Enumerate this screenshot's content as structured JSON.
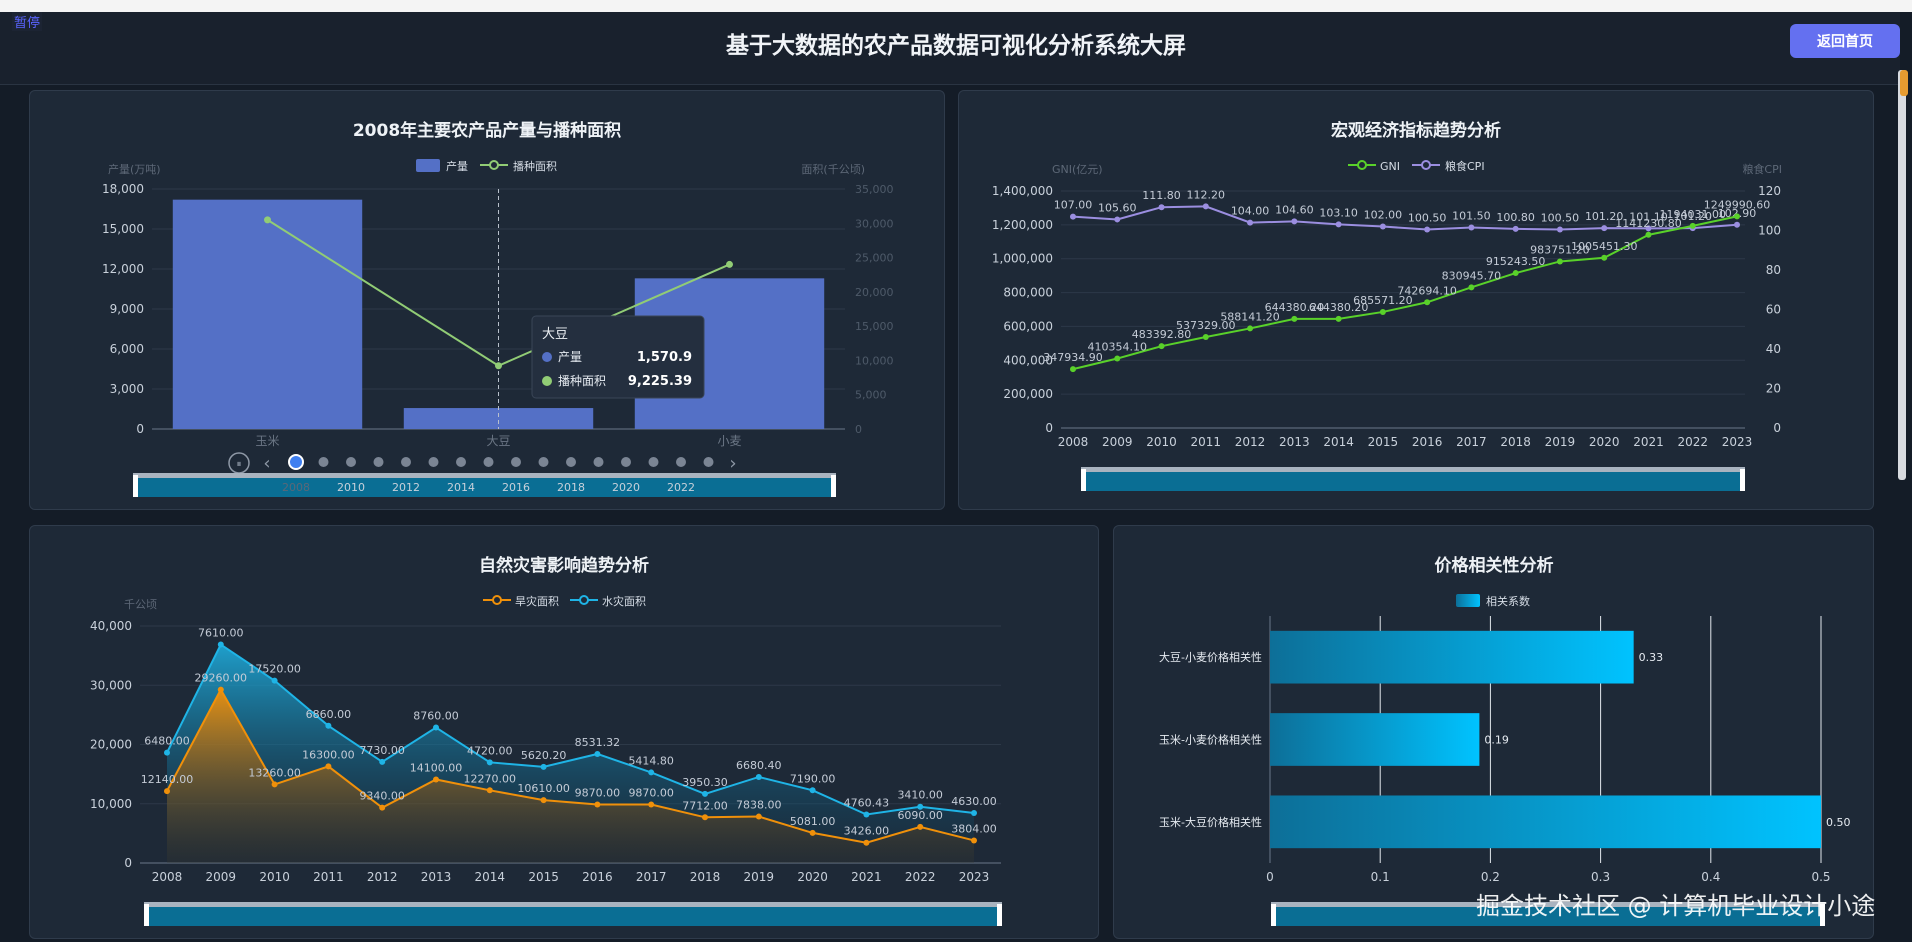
{
  "page": {
    "pause_label": "暂停",
    "title": "基于大数据的农产品数据可视化分析系统大屏",
    "home_button": "返回首页",
    "watermark": "掘金技术社区 @ 计算机毕业设计小途"
  },
  "chart_data": [
    {
      "id": "production",
      "type": "bar",
      "title": "2008年主要农产品产量与播种面积",
      "categories": [
        "玉米",
        "大豆",
        "小麦"
      ],
      "series": [
        {
          "name": "产量",
          "type": "bar",
          "values": [
            17200,
            1570.9,
            11300
          ],
          "axis": "left"
        },
        {
          "name": "播种面积",
          "type": "line",
          "values": [
            30500,
            9225.39,
            24000
          ],
          "axis": "right"
        }
      ],
      "ylabel_left": "产量(万吨)",
      "ylabel_right": "面积(千公顷)",
      "ylim_left": [
        0,
        18000
      ],
      "yticks_left": [
        "0",
        "3,000",
        "6,000",
        "9,000",
        "12,000",
        "15,000",
        "18,000"
      ],
      "ylim_right": [
        0,
        35000
      ],
      "yticks_right": [
        "0",
        "5,000",
        "10,000",
        "15,000",
        "20,000",
        "25,000",
        "30,000",
        "35,000"
      ],
      "legend_position": "top",
      "tooltip": {
        "title": "大豆",
        "rows": [
          {
            "name": "产量",
            "value": "1,570.9"
          },
          {
            "name": "播种面积",
            "value": "9,225.39"
          }
        ]
      },
      "timeline": {
        "current": 2008,
        "years": [
          "2008",
          "2010",
          "2012",
          "2014",
          "2016",
          "2018",
          "2020",
          "2022"
        ],
        "points": 16
      },
      "colors": {
        "bar": "#5470c6",
        "line": "#91cc75"
      }
    },
    {
      "id": "macro",
      "type": "line",
      "title": "宏观经济指标趋势分析",
      "x": [
        "2008",
        "2009",
        "2010",
        "2011",
        "2012",
        "2013",
        "2014",
        "2015",
        "2016",
        "2017",
        "2018",
        "2019",
        "2020",
        "2021",
        "2022",
        "2023"
      ],
      "series": [
        {
          "name": "GNI",
          "axis": "left",
          "values": [
            347934.9,
            410354.1,
            483392.8,
            537329.0,
            588141.2,
            644380.2,
            644380.2,
            685571.2,
            742694.1,
            830945.7,
            915243.5,
            983751.2,
            1005451.3,
            1141230.8,
            1194031.0,
            1249990.6
          ],
          "labels": [
            "347934.90",
            "410354.10",
            "483392.80",
            "537329.00",
            "588141.20",
            "644380.20",
            "644380.20",
            "685571.20",
            "742694.10",
            "830945.70",
            "915243.50",
            "983751.20",
            "1005451.30",
            "1141230.80",
            "1194031.00",
            "1249990.60"
          ]
        },
        {
          "name": "粮食CPI",
          "axis": "right",
          "values": [
            107.0,
            105.6,
            111.8,
            112.2,
            104.0,
            104.6,
            103.1,
            102.0,
            100.5,
            101.5,
            100.8,
            100.5,
            101.2,
            101.1,
            101.2,
            102.9
          ],
          "labels": [
            "107.00",
            "105.60",
            "111.80",
            "112.20",
            "104.00",
            "104.60",
            "103.10",
            "102.00",
            "100.50",
            "101.50",
            "100.80",
            "100.50",
            "101.20",
            "101.10",
            "101.20",
            "102.90"
          ]
        }
      ],
      "ylabel_left": "GNI(亿元)",
      "ylabel_right": "粮食CPI",
      "ylim_left": [
        0,
        1400000
      ],
      "yticks_left": [
        "0",
        "200,000",
        "400,000",
        "600,000",
        "800,000",
        "1,000,000",
        "1,200,000",
        "1,400,000"
      ],
      "ylim_right": [
        0,
        120
      ],
      "yticks_right": [
        "0",
        "20",
        "40",
        "60",
        "80",
        "100",
        "120"
      ],
      "legend_position": "top",
      "colors": {
        "GNI": "#59d12a",
        "粮食CPI": "#9b8ee0"
      }
    },
    {
      "id": "disaster",
      "type": "area",
      "title": "自然灾害影响趋势分析",
      "x": [
        "2008",
        "2009",
        "2010",
        "2011",
        "2012",
        "2013",
        "2014",
        "2015",
        "2016",
        "2017",
        "2018",
        "2019",
        "2020",
        "2021",
        "2022",
        "2023"
      ],
      "series": [
        {
          "name": "旱灾面积",
          "values": [
            12140,
            29260,
            13260,
            16300,
            9340,
            14100,
            12270,
            10610,
            9870,
            9870,
            7712,
            7838,
            5081,
            3426,
            6090,
            3804
          ],
          "labels": [
            "12140.00",
            "29260.00",
            "13260.00",
            "16300.00",
            "9340.00",
            "14100.00",
            "12270.00",
            "10610.00",
            "9870.00",
            "9870.00",
            "7712.00",
            "7838.00",
            "5081.00",
            "3426.00",
            "6090.00",
            "3804.00"
          ]
        },
        {
          "name": "水灾面积",
          "values": [
            18620,
            36870,
            30780,
            23160,
            17070,
            22860,
            16990,
            16230,
            18401,
            15285,
            11662,
            14518,
            12271,
            8186,
            9500,
            8434
          ],
          "labels": [
            "6480.00",
            "7610.00",
            "17520.00",
            "6860.00",
            "7730.00",
            "8760.00",
            "4720.00",
            "5620.20",
            "8531.32",
            "5414.80",
            "3950.30",
            "6680.40",
            "7190.00",
            "4760.43",
            "3410.00",
            "4630.00"
          ]
        }
      ],
      "ylabel": "千公顷",
      "ylim": [
        0,
        40000
      ],
      "yticks": [
        "0",
        "10,000",
        "20,000",
        "30,000",
        "40,000"
      ],
      "legend_position": "top",
      "colors": {
        "旱灾面积": "#f0900a",
        "水灾面积": "#1fb4e6"
      }
    },
    {
      "id": "correlation",
      "type": "bar",
      "orientation": "horizontal",
      "title": "价格相关性分析",
      "categories": [
        "大豆-小麦价格相关性",
        "玉米-小麦价格相关性",
        "玉米-大豆价格相关性"
      ],
      "series": [
        {
          "name": "相关系数",
          "values": [
            0.33,
            0.19,
            0.5
          ],
          "labels": [
            "0.33",
            "0.19",
            "0.50"
          ]
        }
      ],
      "xlim": [
        0,
        0.5
      ],
      "xticks": [
        "0",
        "0.1",
        "0.2",
        "0.3",
        "0.4",
        "0.5"
      ],
      "legend_position": "top",
      "colors": {
        "bar_start": "#0d6f98",
        "bar_end": "#00c3ff"
      }
    }
  ]
}
